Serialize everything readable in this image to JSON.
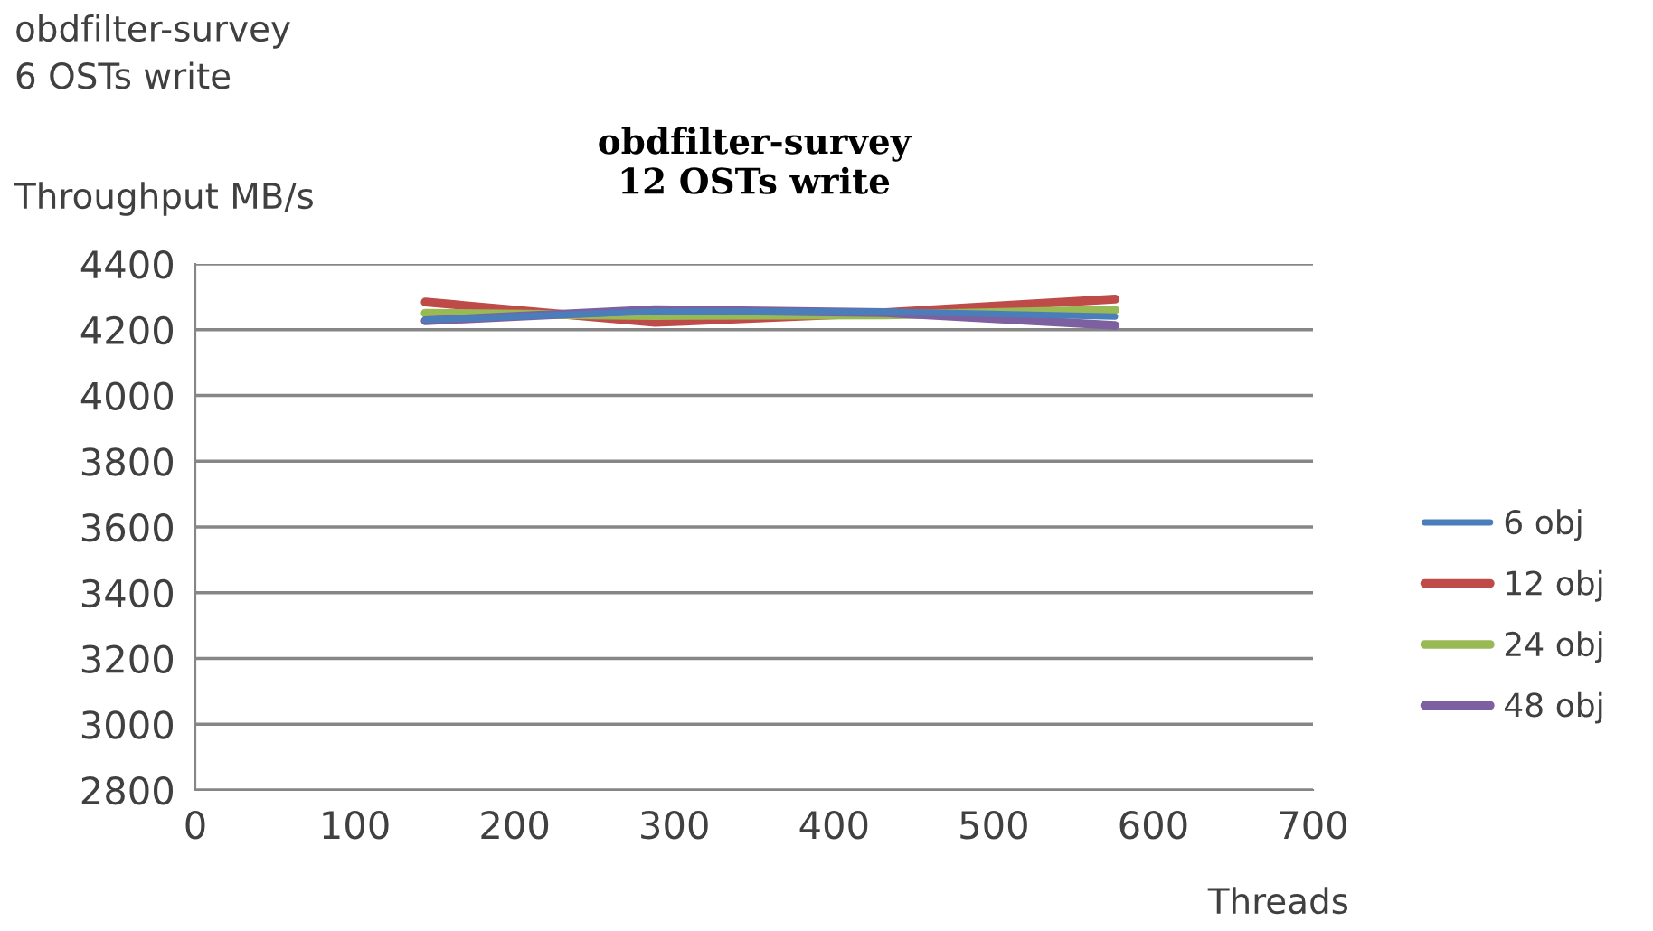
{
  "chart_data": {
    "type": "line",
    "title": "obdfilter-survey\n12 OSTs write",
    "xlabel": "Threads",
    "ylabel": "Throughput MB/s",
    "annotations": [
      "obdfilter-survey\n6 OSTs write"
    ],
    "x": [
      144,
      288,
      432,
      576
    ],
    "series": [
      {
        "name": "6 obj",
        "color": "#4a7ebb",
        "values": [
          4230,
          4255,
          4255,
          4240
        ]
      },
      {
        "name": "12 obj",
        "color": "#be4b48",
        "values": [
          4284,
          4222,
          4252,
          4293
        ]
      },
      {
        "name": "24 obj",
        "color": "#98b954",
        "values": [
          4250,
          4243,
          4245,
          4260
        ]
      },
      {
        "name": "48 obj",
        "color": "#7d60a0",
        "values": [
          4227,
          4261,
          4252,
          4213
        ]
      }
    ],
    "xlim": [
      0,
      700
    ],
    "xticks": [
      0,
      100,
      200,
      300,
      400,
      500,
      600,
      700
    ],
    "ylim": [
      2800,
      4400
    ],
    "yticks": [
      2800,
      3000,
      3200,
      3400,
      3600,
      3800,
      4000,
      4200,
      4400
    ],
    "grid": "y",
    "legend": "right",
    "marker": "none",
    "line_style": "solid"
  }
}
